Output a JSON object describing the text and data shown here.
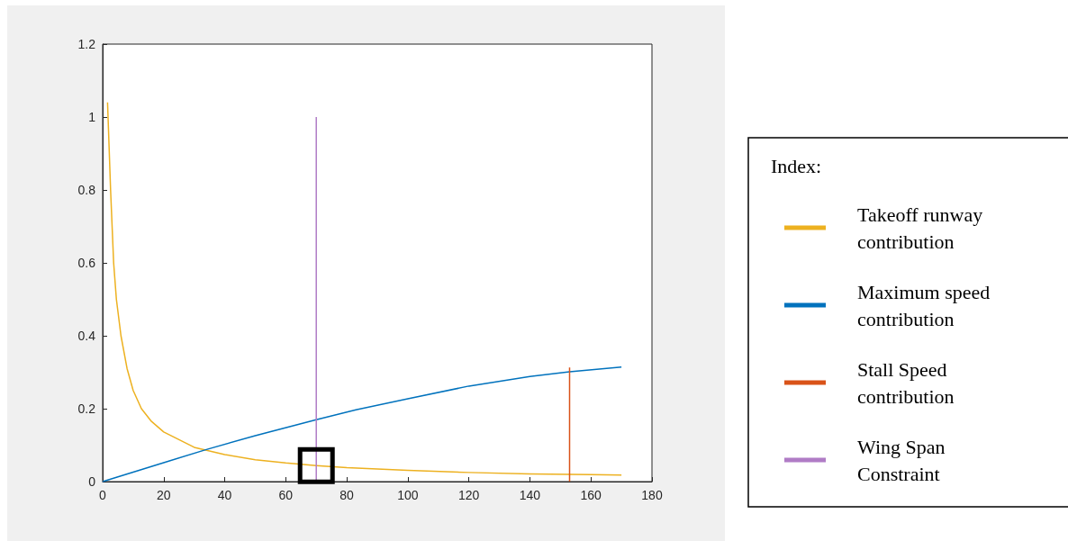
{
  "chart_data": {
    "type": "line",
    "legend_title": "Index:",
    "legend": "right",
    "grid": false,
    "marker": "none",
    "line_style": "solid",
    "xlim": [
      0,
      180
    ],
    "xticks": [
      0,
      20,
      40,
      60,
      80,
      100,
      120,
      140,
      160,
      180
    ],
    "ylim": [
      0,
      1.2
    ],
    "yticks": [
      0,
      0.2,
      0.4,
      0.6,
      0.8,
      1,
      1.2
    ],
    "series": [
      {
        "name": "Takeoff runway contribution",
        "color": "#edb120",
        "x": [
          1.6,
          2.1,
          2.6,
          3.6,
          4.5,
          6,
          8,
          10,
          12.7,
          16,
          20,
          30,
          40,
          50,
          60,
          70,
          80,
          100,
          120,
          140,
          160,
          170
        ],
        "values": [
          1.04,
          0.92,
          0.8,
          0.6,
          0.5,
          0.4,
          0.31,
          0.25,
          0.2,
          0.165,
          0.136,
          0.094,
          0.074,
          0.06,
          0.051,
          0.044,
          0.038,
          0.031,
          0.025,
          0.021,
          0.019,
          0.018
        ]
      },
      {
        "name": "Maximum speed contribution",
        "color": "#0072bd",
        "x": [
          0,
          10,
          20,
          34,
          50,
          70,
          83,
          100,
          120,
          140,
          153,
          170
        ],
        "values": [
          0,
          0.026,
          0.052,
          0.088,
          0.126,
          0.17,
          0.197,
          0.227,
          0.262,
          0.288,
          0.301,
          0.314
        ]
      },
      {
        "name": "Stall Speed contribution",
        "color": "#d95319",
        "x": [
          153,
          153
        ],
        "values": [
          0,
          0.313
        ]
      },
      {
        "name": "Wing Span Constraint",
        "color": "#b07cc6",
        "x": [
          70,
          70
        ],
        "values": [
          0,
          1
        ]
      }
    ]
  }
}
